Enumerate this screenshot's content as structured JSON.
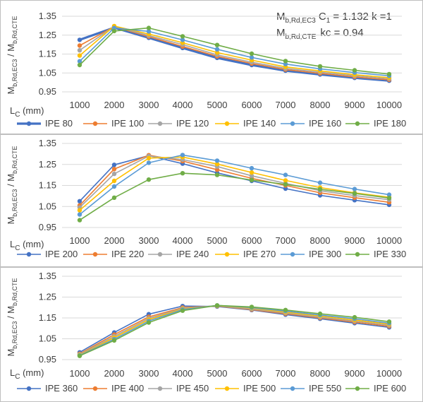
{
  "chart_data": [
    {
      "type": "line",
      "categories": [
        "1000",
        "2000",
        "3000",
        "4000",
        "5000",
        "6000",
        "7000",
        "8000",
        "9000",
        "10000"
      ],
      "ylim": [
        0.95,
        1.35
      ],
      "yticks": [
        "1.35",
        "1.25",
        "1.15",
        "1.05",
        "0.95"
      ],
      "ylabel": {
        "a": "M",
        "a_sub": "b,Rd,EC3",
        "sep": " / ",
        "b": "M",
        "b_sub": "b,Rd,CTE"
      },
      "xlabel": {
        "main": "L",
        "sub": "C",
        "unit": " (mm)"
      },
      "annotation": {
        "line1": {
          "m": "M",
          "m_sub": "b,Rd,EC3",
          "c": "C",
          "c_sub": "1",
          "rest": " = 1.132 k =1"
        },
        "line2": {
          "m": "M",
          "m_sub": "b,Rd,CTE",
          "rest": "kc = 0.94"
        }
      },
      "series": [
        {
          "name": "IPE 80",
          "color": "#4472C4",
          "thick": true,
          "values": [
            1.225,
            1.29,
            1.236,
            1.182,
            1.13,
            1.092,
            1.062,
            1.042,
            1.024,
            1.009
          ]
        },
        {
          "name": "IPE 100",
          "color": "#ED7D31",
          "thick": false,
          "values": [
            1.195,
            1.295,
            1.242,
            1.19,
            1.138,
            1.1,
            1.068,
            1.048,
            1.029,
            1.014
          ]
        },
        {
          "name": "IPE 120",
          "color": "#A5A5A5",
          "thick": false,
          "values": [
            1.17,
            1.297,
            1.248,
            1.2,
            1.146,
            1.107,
            1.074,
            1.054,
            1.035,
            1.019
          ]
        },
        {
          "name": "IPE 140",
          "color": "#FFC000",
          "thick": false,
          "values": [
            1.142,
            1.298,
            1.256,
            1.21,
            1.158,
            1.118,
            1.082,
            1.061,
            1.041,
            1.025
          ]
        },
        {
          "name": "IPE 160",
          "color": "#5B9BD5",
          "thick": false,
          "values": [
            1.112,
            1.288,
            1.27,
            1.225,
            1.175,
            1.132,
            1.097,
            1.072,
            1.052,
            1.035
          ]
        },
        {
          "name": "IPE 180",
          "color": "#70AD47",
          "thick": false,
          "values": [
            1.092,
            1.272,
            1.288,
            1.244,
            1.198,
            1.152,
            1.113,
            1.085,
            1.064,
            1.044
          ]
        }
      ]
    },
    {
      "type": "line",
      "categories": [
        "1000",
        "2000",
        "3000",
        "4000",
        "5000",
        "6000",
        "7000",
        "8000",
        "9000",
        "10000"
      ],
      "ylim": [
        0.95,
        1.35
      ],
      "yticks": [
        "1.35",
        "1.25",
        "1.15",
        "1.05",
        "0.95"
      ],
      "ylabel": {
        "a": "M",
        "a_sub": "b,Rd,EC3",
        "sep": " / ",
        "b": "M",
        "b_sub": "b,Rd,CTE"
      },
      "xlabel": {
        "main": "L",
        "sub": "C",
        "unit": " (mm)"
      },
      "series": [
        {
          "name": "IPE 200",
          "color": "#4472C4",
          "thick": false,
          "values": [
            1.075,
            1.248,
            1.292,
            1.254,
            1.21,
            1.172,
            1.135,
            1.103,
            1.08,
            1.058
          ]
        },
        {
          "name": "IPE 220",
          "color": "#ED7D31",
          "thick": false,
          "values": [
            1.055,
            1.228,
            1.294,
            1.266,
            1.225,
            1.184,
            1.15,
            1.115,
            1.092,
            1.07
          ]
        },
        {
          "name": "IPE 240",
          "color": "#A5A5A5",
          "thick": false,
          "values": [
            1.045,
            1.205,
            1.29,
            1.273,
            1.24,
            1.196,
            1.16,
            1.125,
            1.102,
            1.082
          ]
        },
        {
          "name": "IPE 270",
          "color": "#FFC000",
          "thick": false,
          "values": [
            1.032,
            1.172,
            1.28,
            1.285,
            1.252,
            1.212,
            1.174,
            1.14,
            1.115,
            1.094
          ]
        },
        {
          "name": "IPE 300",
          "color": "#5B9BD5",
          "thick": false,
          "values": [
            1.012,
            1.145,
            1.258,
            1.295,
            1.268,
            1.232,
            1.2,
            1.163,
            1.133,
            1.106
          ]
        },
        {
          "name": "IPE 330",
          "color": "#70AD47",
          "thick": false,
          "values": [
            0.985,
            1.092,
            1.178,
            1.208,
            1.2,
            1.176,
            1.155,
            1.132,
            1.112,
            1.09
          ]
        }
      ]
    },
    {
      "type": "line",
      "categories": [
        "1000",
        "2000",
        "3000",
        "4000",
        "5000",
        "6000",
        "7000",
        "8000",
        "9000",
        "10000"
      ],
      "ylim": [
        0.95,
        1.35
      ],
      "yticks": [
        "1.35",
        "1.25",
        "1.15",
        "1.05",
        "0.95"
      ],
      "ylabel": {
        "a": "M",
        "a_sub": "b,Rd,EC3",
        "sep": " / ",
        "b": "M",
        "b_sub": "b,Rd,CTE"
      },
      "xlabel": {
        "main": "L",
        "sub": "C",
        "unit": " (mm)"
      },
      "series": [
        {
          "name": "IPE 360",
          "color": "#4472C4",
          "thick": false,
          "values": [
            0.985,
            1.08,
            1.168,
            1.207,
            1.205,
            1.188,
            1.166,
            1.146,
            1.125,
            1.105
          ]
        },
        {
          "name": "IPE 400",
          "color": "#ED7D31",
          "thick": false,
          "values": [
            0.978,
            1.07,
            1.155,
            1.2,
            1.207,
            1.19,
            1.17,
            1.15,
            1.13,
            1.11
          ]
        },
        {
          "name": "IPE 450",
          "color": "#A5A5A5",
          "thick": false,
          "values": [
            0.975,
            1.062,
            1.148,
            1.196,
            1.208,
            1.193,
            1.174,
            1.154,
            1.135,
            1.115
          ]
        },
        {
          "name": "IPE 500",
          "color": "#FFC000",
          "thick": false,
          "values": [
            0.972,
            1.055,
            1.142,
            1.193,
            1.209,
            1.197,
            1.178,
            1.159,
            1.14,
            1.12
          ]
        },
        {
          "name": "IPE 550",
          "color": "#5B9BD5",
          "thick": false,
          "values": [
            0.97,
            1.048,
            1.135,
            1.19,
            1.21,
            1.2,
            1.183,
            1.164,
            1.146,
            1.125
          ]
        },
        {
          "name": "IPE 600",
          "color": "#70AD47",
          "thick": false,
          "values": [
            0.968,
            1.042,
            1.128,
            1.185,
            1.21,
            1.203,
            1.188,
            1.17,
            1.153,
            1.132
          ]
        }
      ]
    }
  ]
}
